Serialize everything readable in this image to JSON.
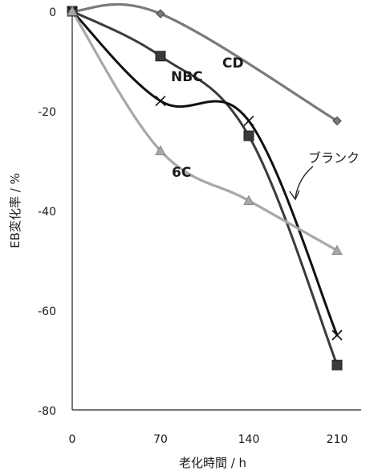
{
  "chart_data": {
    "type": "line",
    "title": "",
    "xlabel": "老化時間 / h",
    "ylabel": "EB変化率 / %",
    "x": [
      0,
      70,
      140,
      210
    ],
    "xlim": [
      0,
      210
    ],
    "ylim": [
      -80,
      0
    ],
    "xticks": [
      "0",
      "70",
      "140",
      "210"
    ],
    "yticks": [
      "0",
      "-20",
      "-40",
      "-60",
      "-80"
    ],
    "grid": false,
    "legend": "none",
    "series": [
      {
        "name": "CD",
        "values": [
          0,
          -0.5,
          null,
          -22
        ],
        "color": "#7a7a7a",
        "marker": "diamond"
      },
      {
        "name": "NBC",
        "values": [
          0,
          -9,
          -25,
          -71
        ],
        "color": "#3a3a3a",
        "marker": "square"
      },
      {
        "name": "ブランク",
        "values": [
          0,
          -18,
          -22,
          -65
        ],
        "color": "#111111",
        "marker": "x"
      },
      {
        "name": "6C",
        "values": [
          0,
          -28,
          -38,
          -48
        ],
        "color": "#a8a8a8",
        "marker": "triangle"
      }
    ],
    "labels": {
      "cd": "CD",
      "nbc": "NBC",
      "blank": "ブランク",
      "c6": "6C"
    }
  }
}
